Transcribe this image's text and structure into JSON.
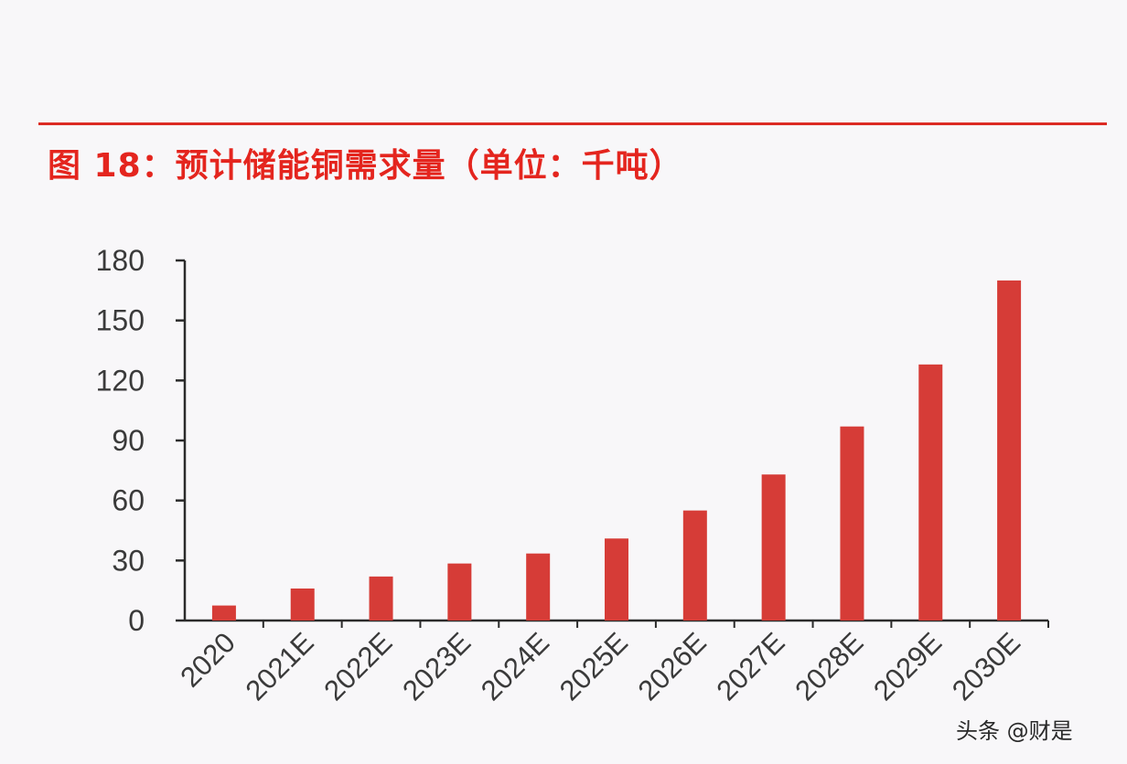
{
  "figure": {
    "title": "图 18：预计储能铜需求量（单位：千吨）",
    "accent_color": "#dc2b23",
    "bar_color": "#d63c37"
  },
  "watermark": {
    "text": "头条 @财是"
  },
  "chart_data": {
    "type": "bar",
    "title": "图 18：预计储能铜需求量（单位：千吨）",
    "xlabel": "",
    "ylabel": "",
    "categories": [
      "2020",
      "2021E",
      "2022E",
      "2023E",
      "2024E",
      "2025E",
      "2026E",
      "2027E",
      "2028E",
      "2029E",
      "2030E"
    ],
    "values": [
      7.5,
      16,
      22,
      28.5,
      33.5,
      41,
      55,
      73,
      97,
      128,
      170
    ],
    "ylim": [
      0,
      180
    ],
    "yticks": [
      0,
      30,
      60,
      90,
      120,
      150,
      180
    ],
    "grid": false,
    "legend": "none"
  }
}
